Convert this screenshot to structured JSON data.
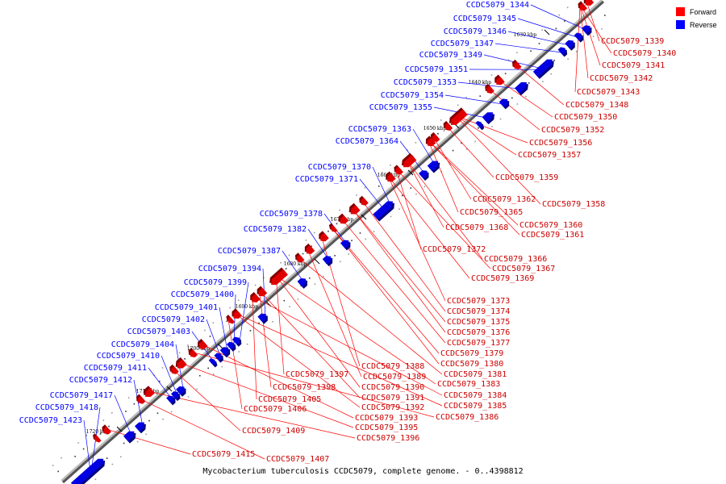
{
  "caption": "Mycobacterium tuberculosis CCDC5079, complete genome. - 0..4398812",
  "legend": {
    "forward_label": "Forward",
    "reverse_label": "Reverse",
    "forward_color": "#ff0000",
    "reverse_color": "#0000ff"
  },
  "colors": {
    "forward": "#e00000",
    "reverse": "#0000e0",
    "line": "#ff0000"
  },
  "ticks": [
    "1630 kbp",
    "1640 kbp",
    "1650 kbp",
    "1660 kbp",
    "1670 kbp",
    "1680 kbp",
    "1690 kbp",
    "1700 kbp",
    "1710 kbp",
    "1720 kbp"
  ],
  "reverse_genes": [
    "CCDC5079_1344",
    "CCDC5079_1345",
    "CCDC5079_1346",
    "CCDC5079_1347",
    "CCDC5079_1349",
    "CCDC5079_1351",
    "CCDC5079_1353",
    "CCDC5079_1354",
    "CCDC5079_1355",
    "CCDC5079_1363",
    "CCDC5079_1364",
    "CCDC5079_1370",
    "CCDC5079_1371",
    "CCDC5079_1378",
    "CCDC5079_1382",
    "CCDC5079_1387",
    "CCDC5079_1394",
    "CCDC5079_1399",
    "CCDC5079_1400",
    "CCDC5079_1401",
    "CCDC5079_1402",
    "CCDC5079_1403",
    "CCDC5079_1404",
    "CCDC5079_1410",
    "CCDC5079_1411",
    "CCDC5079_1412",
    "CCDC5079_1417",
    "CCDC5079_1418",
    "CCDC5079_1423"
  ],
  "forward_genes": [
    "CCDC5079_1339",
    "CCDC5079_1340",
    "CCDC5079_1341",
    "CCDC5079_1342",
    "CCDC5079_1343",
    "CCDC5079_1348",
    "CCDC5079_1350",
    "CCDC5079_1352",
    "CCDC5079_1356",
    "CCDC5079_1357",
    "CCDC5079_1359",
    "CCDC5079_1362",
    "CCDC5079_1358",
    "CCDC5079_1365",
    "CCDC5079_1368",
    "CCDC5079_1360",
    "CCDC5079_1361",
    "CCDC5079_1372",
    "CCDC5079_1366",
    "CCDC5079_1367",
    "CCDC5079_1369",
    "CCDC5079_1373",
    "CCDC5079_1374",
    "CCDC5079_1375",
    "CCDC5079_1376",
    "CCDC5079_1377",
    "CCDC5079_1379",
    "CCDC5079_1388",
    "CCDC5079_1380",
    "CCDC5079_1389",
    "CCDC5079_1381",
    "CCDC5079_1397",
    "CCDC5079_1390",
    "CCDC5079_1383",
    "CCDC5079_1398",
    "CCDC5079_1391",
    "CCDC5079_1384",
    "CCDC5079_1405",
    "CCDC5079_1392",
    "CCDC5079_1385",
    "CCDC5079_1406",
    "CCDC5079_1393",
    "CCDC5079_1386",
    "CCDC5079_1395",
    "CCDC5079_1409",
    "CCDC5079_1396",
    "CCDC5079_1415",
    "CCDC5079_1407"
  ]
}
